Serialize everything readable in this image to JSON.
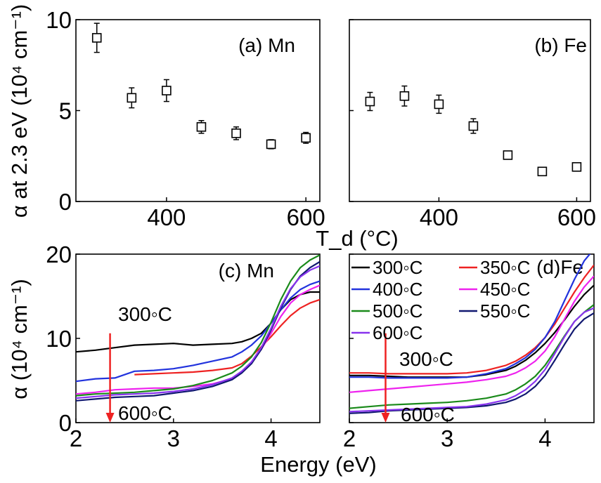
{
  "figure": {
    "shared_ylabel_top": "α at 2.3 eV (10⁴ cm⁻¹)",
    "shared_xlabel_top": "T_d (°C)",
    "shared_ylabel_bottom": "α (10⁴ cm⁻¹)",
    "shared_xlabel_bottom": "Energy (eV)"
  },
  "chart_data": [
    {
      "type": "scatter",
      "panel": "a",
      "annotation": "(a) Mn",
      "xlabel": "T_d (°C)",
      "ylabel": "α at 2.3 eV (10⁴ cm⁻¹)",
      "xlim": [
        270,
        620
      ],
      "ylim": [
        0,
        10
      ],
      "xticks": [
        400,
        600
      ],
      "xtick_labels": [
        "400",
        "600"
      ],
      "yticks": [
        0,
        5,
        10
      ],
      "ytick_labels": [
        "0",
        "5",
        "10"
      ],
      "marker": "open-square",
      "series": [
        {
          "x": [
            300,
            350,
            400,
            450,
            500,
            550,
            600
          ],
          "y": [
            9.0,
            5.7,
            6.1,
            4.1,
            3.75,
            3.15,
            3.5
          ],
          "yerr": [
            0.8,
            0.55,
            0.6,
            0.35,
            0.35,
            0.25,
            0.3
          ]
        }
      ]
    },
    {
      "type": "scatter",
      "panel": "b",
      "annotation": "(b) Fe",
      "xlabel": "T_d (°C)",
      "xlim": [
        270,
        620
      ],
      "ylim": [
        0,
        10
      ],
      "xticks": [
        400,
        600
      ],
      "xtick_labels": [
        "400",
        "600"
      ],
      "yticks": [
        0,
        5,
        10
      ],
      "marker": "open-square",
      "series": [
        {
          "x": [
            300,
            350,
            400,
            450,
            500,
            550,
            600
          ],
          "y": [
            5.5,
            5.8,
            5.35,
            4.15,
            2.55,
            1.65,
            1.9
          ],
          "yerr": [
            0.5,
            0.55,
            0.5,
            0.4,
            0.15,
            0.2,
            0.2
          ]
        }
      ]
    },
    {
      "type": "line",
      "panel": "c",
      "annotation": "(c) Mn",
      "xlabel": "Energy (eV)",
      "ylabel": "α (10⁴ cm⁻¹)",
      "xlim": [
        2.0,
        4.5
      ],
      "ylim": [
        0,
        20
      ],
      "xticks": [
        2,
        3,
        4
      ],
      "xtick_labels": [
        "2",
        "3",
        "4"
      ],
      "yticks": [
        0,
        10,
        20
      ],
      "ytick_labels": [
        "0",
        "10",
        "20"
      ],
      "labels": {
        "upper": "300◦C",
        "lower": "600◦C"
      },
      "arrow": {
        "x": 2.35,
        "from": 10.6,
        "to": 0,
        "color": "#ee2222"
      },
      "x": [
        2.0,
        2.2,
        2.4,
        2.6,
        2.8,
        3.0,
        3.2,
        3.4,
        3.6,
        3.7,
        3.8,
        3.9,
        4.0,
        4.1,
        4.2,
        4.3,
        4.4,
        4.5
      ],
      "series": [
        {
          "name": "300◦C",
          "color": "#000000",
          "values": [
            8.4,
            8.6,
            8.9,
            9.2,
            9.3,
            9.4,
            9.2,
            9.3,
            9.4,
            9.6,
            10.0,
            10.6,
            11.8,
            13.4,
            14.6,
            15.2,
            15.5,
            15.5
          ]
        },
        {
          "name": "350◦C",
          "color": "#ee2222",
          "values": [
            null,
            null,
            null,
            5.7,
            5.8,
            5.9,
            6.0,
            6.2,
            6.5,
            7.0,
            7.9,
            9.0,
            10.2,
            11.5,
            12.7,
            13.6,
            14.2,
            14.6
          ]
        },
        {
          "name": "400◦C",
          "color": "#2233dd",
          "values": [
            4.9,
            5.2,
            5.3,
            6.1,
            6.2,
            6.4,
            6.8,
            7.3,
            7.8,
            8.4,
            9.2,
            10.3,
            11.8,
            13.4,
            14.8,
            15.8,
            16.4,
            16.8
          ]
        },
        {
          "name": "450◦C",
          "color": "#ee22ee",
          "values": [
            3.4,
            3.6,
            3.9,
            4.0,
            4.1,
            4.1,
            4.3,
            4.6,
            5.2,
            6.0,
            7.1,
            8.7,
            10.6,
            12.6,
            14.2,
            15.2,
            15.8,
            16.3
          ]
        },
        {
          "name": "500◦C",
          "color": "#1a8a1a",
          "values": [
            3.2,
            3.4,
            3.5,
            3.6,
            3.8,
            4.0,
            4.4,
            5.0,
            5.9,
            6.7,
            7.8,
            9.5,
            11.9,
            14.6,
            16.8,
            18.4,
            19.3,
            19.9
          ]
        },
        {
          "name": "550◦C",
          "color": "#101870",
          "values": [
            2.6,
            2.8,
            3.0,
            3.1,
            3.2,
            3.5,
            3.8,
            4.3,
            5.1,
            5.9,
            7.0,
            8.7,
            11.0,
            13.6,
            15.8,
            17.4,
            18.4,
            19.1
          ]
        },
        {
          "name": "600◦C",
          "color": "#8833ee",
          "values": [
            2.9,
            3.1,
            3.3,
            3.4,
            3.5,
            3.7,
            4.0,
            4.5,
            5.3,
            6.1,
            7.2,
            8.9,
            11.2,
            13.8,
            15.9,
            17.3,
            18.1,
            18.6
          ]
        }
      ]
    },
    {
      "type": "line",
      "panel": "d",
      "annotation": "(d)Fe",
      "xlabel": "Energy (eV)",
      "xlim": [
        2.0,
        4.5
      ],
      "ylim": [
        0,
        20
      ],
      "xticks": [
        2,
        3,
        4
      ],
      "xtick_labels": [
        "2",
        "3",
        "4"
      ],
      "yticks": [
        0,
        10,
        20
      ],
      "labels": {
        "upper": "300◦C",
        "lower": "600◦C"
      },
      "arrow": {
        "x": 2.37,
        "from": 10.6,
        "to": 0,
        "color": "#ee2222"
      },
      "legend": {
        "position": "top-left",
        "entries": [
          {
            "label": "300◦C",
            "color": "#000000"
          },
          {
            "label": "350◦C",
            "color": "#ee2222"
          },
          {
            "label": "400◦C",
            "color": "#2233dd"
          },
          {
            "label": "450◦C",
            "color": "#ee22ee"
          },
          {
            "label": "500◦C",
            "color": "#1a8a1a"
          },
          {
            "label": "550◦C",
            "color": "#101870"
          },
          {
            "label": "600◦C",
            "color": "#8833ee"
          }
        ]
      },
      "x": [
        2.0,
        2.2,
        2.4,
        2.6,
        2.8,
        3.0,
        3.2,
        3.4,
        3.6,
        3.7,
        3.8,
        3.9,
        4.0,
        4.1,
        4.2,
        4.3,
        4.4,
        4.5
      ],
      "series": [
        {
          "name": "300◦C",
          "color": "#000000",
          "values": [
            5.6,
            5.6,
            5.5,
            5.4,
            5.4,
            5.4,
            5.4,
            5.7,
            6.2,
            6.7,
            7.4,
            8.3,
            9.4,
            10.7,
            12.2,
            13.8,
            15.2,
            16.3
          ]
        },
        {
          "name": "350◦C",
          "color": "#ee2222",
          "values": [
            5.9,
            5.9,
            5.8,
            5.8,
            5.8,
            5.8,
            5.9,
            6.2,
            6.8,
            7.3,
            8.0,
            8.9,
            10.1,
            11.7,
            13.6,
            15.5,
            17.2,
            18.7
          ]
        },
        {
          "name": "400◦C",
          "color": "#2233dd",
          "values": [
            5.4,
            5.4,
            5.3,
            5.3,
            5.3,
            5.3,
            5.4,
            5.8,
            6.4,
            7.0,
            7.7,
            8.7,
            10.1,
            12.0,
            14.5,
            17.0,
            19.2,
            20.6
          ]
        },
        {
          "name": "450◦C",
          "color": "#ee22ee",
          "values": [
            3.6,
            3.8,
            4.0,
            4.2,
            4.4,
            4.6,
            4.8,
            5.1,
            5.5,
            5.9,
            6.5,
            7.3,
            8.5,
            10.2,
            12.3,
            14.4,
            16.1,
            17.4
          ]
        },
        {
          "name": "500◦C",
          "color": "#1a8a1a",
          "values": [
            1.7,
            1.9,
            2.1,
            2.2,
            2.3,
            2.4,
            2.6,
            2.9,
            3.4,
            3.9,
            4.6,
            5.5,
            6.8,
            8.5,
            10.3,
            12.0,
            13.1,
            14.0
          ]
        },
        {
          "name": "550◦C",
          "color": "#101870",
          "values": [
            1.1,
            1.2,
            1.4,
            1.5,
            1.6,
            1.7,
            1.8,
            2.0,
            2.4,
            2.8,
            3.4,
            4.3,
            5.6,
            7.4,
            9.3,
            11.1,
            12.3,
            13.0
          ]
        },
        {
          "name": "600◦C",
          "color": "#8833ee",
          "values": [
            1.3,
            1.4,
            1.5,
            1.6,
            1.7,
            1.8,
            1.9,
            2.2,
            2.7,
            3.2,
            3.9,
            4.9,
            6.3,
            8.2,
            10.2,
            12.0,
            13.1,
            13.6
          ]
        }
      ]
    }
  ]
}
